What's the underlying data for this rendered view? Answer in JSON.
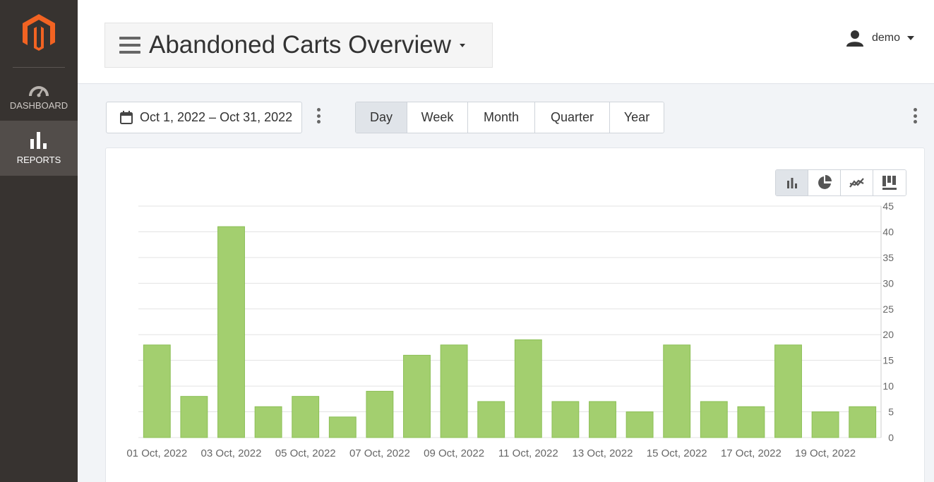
{
  "sidebar": {
    "logo_icon": "magento-logo-icon",
    "items": [
      {
        "label": "DASHBOARD",
        "icon": "speedometer-icon",
        "active": false
      },
      {
        "label": "REPORTS",
        "icon": "bar-chart-icon",
        "active": true
      }
    ]
  },
  "header": {
    "title": "Abandoned Carts Overview",
    "user": "demo"
  },
  "toolbar": {
    "date_range": "Oct 1, 2022 – Oct 31, 2022",
    "periods": [
      "Day",
      "Week",
      "Month",
      "Quarter",
      "Year"
    ],
    "active_period": "Day"
  },
  "chart_types": [
    {
      "icon": "bar-chart-icon",
      "active": true
    },
    {
      "icon": "pie-chart-icon",
      "active": false
    },
    {
      "icon": "line-chart-icon",
      "active": false
    },
    {
      "icon": "table-chart-icon",
      "active": false
    }
  ],
  "colors": {
    "sidebar": "#373330",
    "bar": "#a3cf6f",
    "bar_stroke": "#8bbf55",
    "grid": "#e3e3e3",
    "axis_text": "#666666"
  },
  "chart_data": {
    "type": "bar",
    "categories": [
      "01 Oct, 2022",
      "02 Oct, 2022",
      "03 Oct, 2022",
      "04 Oct, 2022",
      "05 Oct, 2022",
      "06 Oct, 2022",
      "07 Oct, 2022",
      "08 Oct, 2022",
      "09 Oct, 2022",
      "10 Oct, 2022",
      "11 Oct, 2022",
      "12 Oct, 2022",
      "13 Oct, 2022",
      "14 Oct, 2022",
      "15 Oct, 2022",
      "16 Oct, 2022",
      "17 Oct, 2022",
      "18 Oct, 2022",
      "19 Oct, 2022",
      "20 Oct, 2022"
    ],
    "x_tick_labels": [
      "01 Oct, 2022",
      "03 Oct, 2022",
      "05 Oct, 2022",
      "07 Oct, 2022",
      "09 Oct, 2022",
      "11 Oct, 2022",
      "13 Oct, 2022",
      "15 Oct, 2022",
      "17 Oct, 2022",
      "19 Oct, 2022"
    ],
    "values": [
      18,
      8,
      41,
      6,
      8,
      4,
      9,
      16,
      18,
      7,
      19,
      7,
      7,
      5,
      18,
      7,
      6,
      18,
      5,
      6
    ],
    "ylim": [
      0,
      45
    ],
    "yticks": [
      0,
      5,
      10,
      15,
      20,
      25,
      30,
      35,
      40,
      45
    ],
    "y_axis_position": "right",
    "grid": true,
    "title": "",
    "xlabel": "",
    "ylabel": ""
  }
}
